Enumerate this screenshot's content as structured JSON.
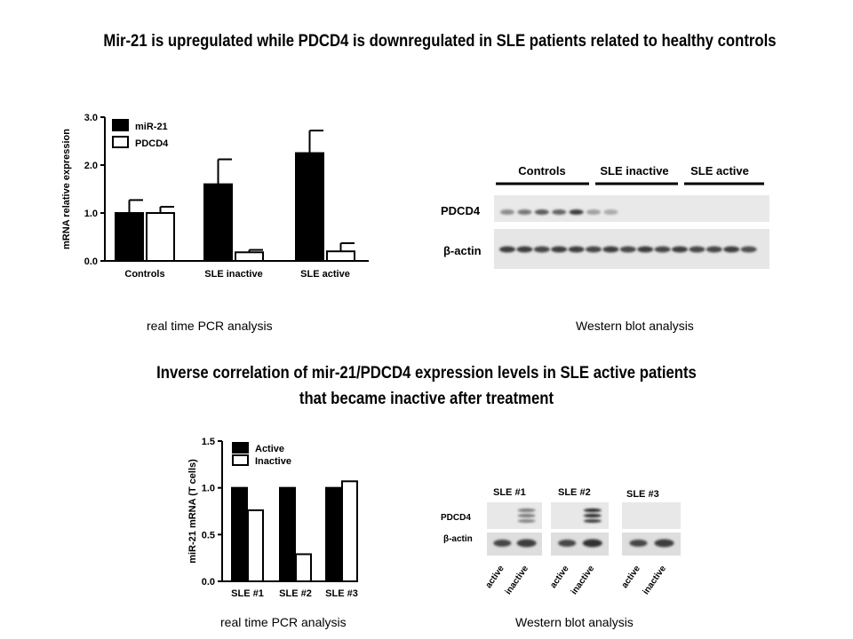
{
  "titles": {
    "top": "Mir-21 is upregulated while PDCD4 is downregulated in SLE patients related to healthy controls",
    "bottom_line1": "Inverse correlation of mir-21/PDCD4 expression levels in SLE active patients",
    "bottom_line2": "that became inactive after treatment"
  },
  "captions": {
    "pcr_top": "real time PCR analysis",
    "wb_top": "Western blot analysis",
    "pcr_bottom": "real time PCR analysis",
    "wb_bottom": "Western blot analysis"
  },
  "chart_data": [
    {
      "type": "bar",
      "categories": [
        "Controls",
        "SLE inactive",
        "SLE active"
      ],
      "series": [
        {
          "name": "miR-21",
          "values": [
            1.0,
            1.6,
            2.25
          ],
          "errors": [
            0.27,
            0.52,
            0.47
          ],
          "fill": "#000000"
        },
        {
          "name": "PDCD4",
          "values": [
            1.0,
            0.18,
            0.2
          ],
          "errors": [
            0.13,
            0.05,
            0.17
          ],
          "fill": "#ffffff"
        }
      ],
      "title": "",
      "xlabel": "",
      "ylabel": "mRNA relative expression",
      "ylim": [
        0,
        3.0
      ],
      "yticks": [
        "0.0",
        "1.0",
        "2.0",
        "3.0"
      ],
      "legend": "top-left"
    },
    {
      "type": "bar",
      "categories": [
        "SLE #1",
        "SLE #2",
        "SLE #3"
      ],
      "series": [
        {
          "name": "Active",
          "values": [
            1.0,
            1.0,
            1.0
          ],
          "fill": "#000000"
        },
        {
          "name": "Inactive",
          "values": [
            0.76,
            0.29,
            1.07
          ],
          "fill": "#ffffff"
        }
      ],
      "title": "",
      "xlabel": "",
      "ylabel": "miR-21 mRNA (T cells)",
      "ylim": [
        0,
        1.5
      ],
      "yticks": [
        "0.0",
        "0.5",
        "1.0",
        "1.5"
      ],
      "legend": "top-left"
    }
  ],
  "blot_top": {
    "groups": [
      "Controls",
      "SLE inactive",
      "SLE active"
    ],
    "rows": [
      "PDCD4",
      "β-actin"
    ],
    "pdcd4_band_strength": [
      0.45,
      0.55,
      0.7,
      0.65,
      0.85,
      0.35,
      0.3,
      0,
      0,
      0,
      0,
      0,
      0,
      0,
      0
    ],
    "actin_band_strength": [
      0.85,
      0.85,
      0.8,
      0.85,
      0.85,
      0.8,
      0.85,
      0.8,
      0.85,
      0.8,
      0.85,
      0.8,
      0.8,
      0.85,
      0.75
    ]
  },
  "blot_bottom": {
    "patients": [
      "SLE #1",
      "SLE #2",
      "SLE #3"
    ],
    "rows": [
      "PDCD4",
      "β-actin"
    ],
    "lanes": [
      "active",
      "inactive"
    ],
    "pdcd4_band_strength": [
      [
        0,
        0.55
      ],
      [
        0,
        0.95
      ],
      [
        0,
        0
      ]
    ],
    "actin_band_strength": [
      [
        0.8,
        0.85
      ],
      [
        0.8,
        0.9
      ],
      [
        0.8,
        0.85
      ]
    ]
  }
}
